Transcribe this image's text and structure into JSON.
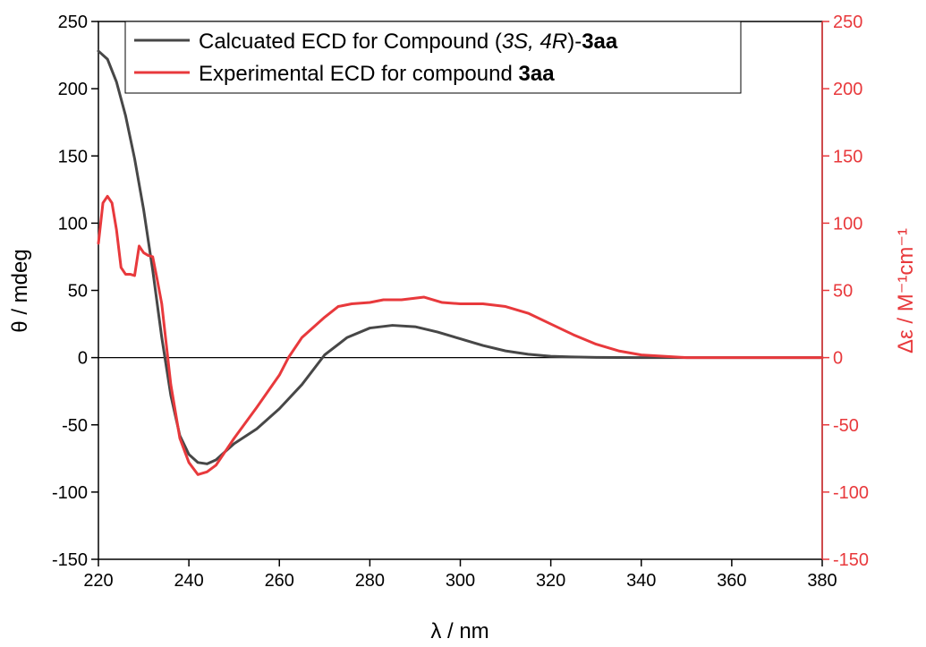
{
  "chart_data": {
    "type": "line",
    "xlabel": "λ / nm",
    "ylabel_left": "θ / mdeg",
    "ylabel_right": "Δε / M⁻¹cm⁻¹",
    "xlim": [
      220,
      380
    ],
    "ylim_left": [
      -150,
      250
    ],
    "ylim_right": [
      -150,
      250
    ],
    "x_ticks": [
      220,
      240,
      260,
      280,
      300,
      320,
      340,
      360,
      380
    ],
    "y_ticks": [
      -150,
      -100,
      -50,
      0,
      50,
      100,
      150,
      200,
      250
    ],
    "zero_line": true,
    "grid": false,
    "legend_position": "top-center",
    "colors": {
      "calculated": "#474747",
      "experimental": "#e8393c",
      "right_axis": "#e8393c"
    },
    "series": [
      {
        "name": "Calcuated ECD for Compound (3S, 4R)-3aa",
        "axis": "left",
        "x": [
          220,
          222,
          224,
          226,
          228,
          230,
          232,
          234,
          236,
          238,
          240,
          242,
          244,
          246,
          248,
          250,
          255,
          260,
          265,
          270,
          275,
          280,
          285,
          290,
          295,
          300,
          305,
          310,
          315,
          320,
          325,
          330,
          340,
          350,
          360,
          380
        ],
        "y": [
          228,
          222,
          205,
          180,
          148,
          110,
          65,
          15,
          -28,
          -58,
          -72,
          -78,
          -79,
          -76,
          -70,
          -64,
          -53,
          -38,
          -20,
          2,
          15,
          22,
          24,
          23,
          19,
          14,
          9,
          5,
          2.5,
          1,
          0.5,
          0.2,
          0,
          0,
          0,
          0
        ]
      },
      {
        "name": "Experimental ECD for compound 3aa",
        "axis": "right",
        "x": [
          220,
          221,
          222,
          223,
          224,
          225,
          226,
          227,
          228,
          229,
          230,
          231,
          232,
          233,
          234,
          235,
          236,
          238,
          240,
          242,
          244,
          246,
          248,
          250,
          255,
          260,
          262,
          265,
          270,
          273,
          276,
          280,
          283,
          287,
          292,
          296,
          300,
          305,
          310,
          315,
          320,
          325,
          330,
          335,
          340,
          345,
          350,
          355,
          360,
          370,
          380
        ],
        "y": [
          85,
          115,
          120,
          115,
          95,
          67,
          62,
          62,
          61,
          83,
          78,
          76,
          75,
          58,
          40,
          10,
          -20,
          -60,
          -78,
          -87,
          -85,
          -80,
          -70,
          -60,
          -37,
          -13,
          0,
          15,
          30,
          38,
          40,
          41,
          43,
          43,
          45,
          41,
          40,
          40,
          38,
          33,
          25,
          17,
          10,
          5,
          2,
          1,
          0,
          0,
          0,
          0,
          0
        ]
      }
    ]
  },
  "legend": {
    "calc_prefix": "Calcuated ECD for Compound (",
    "calc_italic": "3S, 4R",
    "calc_mid": ")-",
    "calc_bold": "3aa",
    "exp_prefix": "Experimental ECD for compound ",
    "exp_bold": "3aa"
  }
}
